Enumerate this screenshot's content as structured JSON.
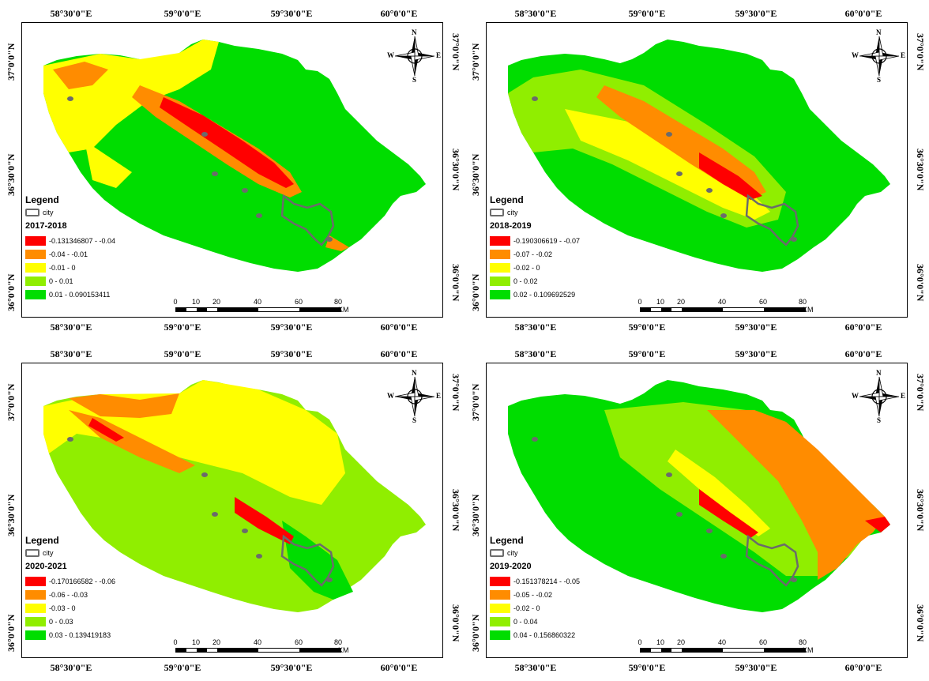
{
  "panels": [
    {
      "id": "2017-2018",
      "period": "2017-2018",
      "classes": [
        {
          "label": "-0.131346807 - -0.04",
          "color": "#ff0000"
        },
        {
          "label": "-0.04 - -0.01",
          "color": "#ff8c00"
        },
        {
          "label": "-0.01 - 0",
          "color": "#ffff00"
        },
        {
          "label": "0 - 0.01",
          "color": "#90ee00"
        },
        {
          "label": "0.01 - 0.090153411",
          "color": "#00dd00"
        }
      ]
    },
    {
      "id": "2018-2019",
      "period": "2018-2019",
      "classes": [
        {
          "label": "-0.190306619 - -0.07",
          "color": "#ff0000"
        },
        {
          "label": "-0.07 - -0.02",
          "color": "#ff8c00"
        },
        {
          "label": "-0.02 - 0",
          "color": "#ffff00"
        },
        {
          "label": "0 - 0.02",
          "color": "#90ee00"
        },
        {
          "label": "0.02 - 0.109692529",
          "color": "#00dd00"
        }
      ]
    },
    {
      "id": "2020-2021",
      "period": "2020-2021",
      "classes": [
        {
          "label": "-0.170166582 - -0.06",
          "color": "#ff0000"
        },
        {
          "label": "-0.06 - -0.03",
          "color": "#ff8c00"
        },
        {
          "label": "-0.03 - 0",
          "color": "#ffff00"
        },
        {
          "label": "0 - 0.03",
          "color": "#90ee00"
        },
        {
          "label": "0.03 - 0.139419183",
          "color": "#00dd00"
        }
      ]
    },
    {
      "id": "2019-2020",
      "period": "2019-2020",
      "classes": [
        {
          "label": "-0.151378214 - -0.05",
          "color": "#ff0000"
        },
        {
          "label": "-0.05 - -0.02",
          "color": "#ff8c00"
        },
        {
          "label": "-0.02 - 0",
          "color": "#ffff00"
        },
        {
          "label": "0 - 0.04",
          "color": "#90ee00"
        },
        {
          "label": "0.04 - 0.156860322",
          "color": "#00dd00"
        }
      ]
    }
  ],
  "legend": {
    "title": "Legend",
    "city_label": "city"
  },
  "longitude_ticks": [
    "58°30'0\"E",
    "59°0'0\"E",
    "59°30'0\"E",
    "60°0'0\"E"
  ],
  "latitude_ticks": [
    "37°0'0\"N",
    "36°30'0\"N",
    "36°0'0\"N"
  ],
  "compass": {
    "n": "N",
    "s": "S",
    "e": "E",
    "w": "W",
    "icon": "north-arrow-compass-icon"
  },
  "scale_bar": {
    "labels": [
      "0",
      "10",
      "20",
      "40",
      "60",
      "80"
    ],
    "unit": "KM"
  }
}
